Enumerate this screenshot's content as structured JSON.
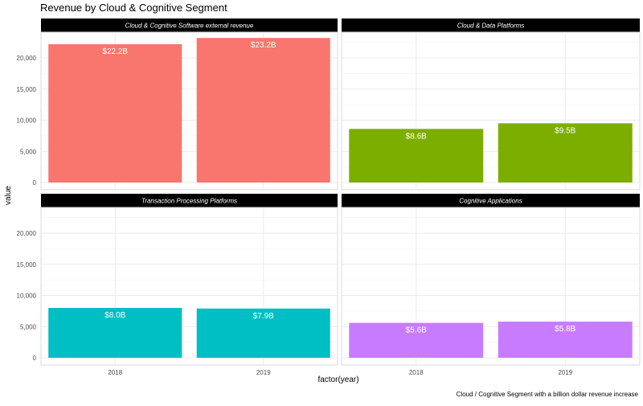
{
  "chart_data": {
    "type": "bar",
    "title": "Revenue by Cloud & Cognitive Segment",
    "xlabel": "factor(year)",
    "ylabel": "value",
    "caption": "Cloud / Cognitive Segment with a billion dollar revenue increase",
    "categories": [
      "2018",
      "2019"
    ],
    "ylim": [
      0,
      24000
    ],
    "yticks": [
      0,
      5000,
      10000,
      15000,
      20000
    ],
    "ytick_labels": [
      "0",
      "5,000",
      "10,000",
      "15,000",
      "20,000"
    ],
    "grid": true,
    "facets": [
      {
        "name": "Cloud & Cognitive Software external revenue",
        "color": "#F8766D",
        "values": [
          22200,
          23200
        ],
        "labels": [
          "$22.2B",
          "$23.2B"
        ]
      },
      {
        "name": "Cloud & Data Platforms",
        "color": "#7CAE00",
        "values": [
          8600,
          9500
        ],
        "labels": [
          "$8.6B",
          "$9.5B"
        ]
      },
      {
        "name": "Transaction Processing Platforms",
        "color": "#00BFC4",
        "values": [
          8000,
          7900
        ],
        "labels": [
          "$8.0B",
          "$7.9B"
        ]
      },
      {
        "name": "Cognitive Applications",
        "color": "#C77CFF",
        "values": [
          5600,
          5800
        ],
        "labels": [
          "$5.6B",
          "$5.8B"
        ]
      }
    ]
  }
}
